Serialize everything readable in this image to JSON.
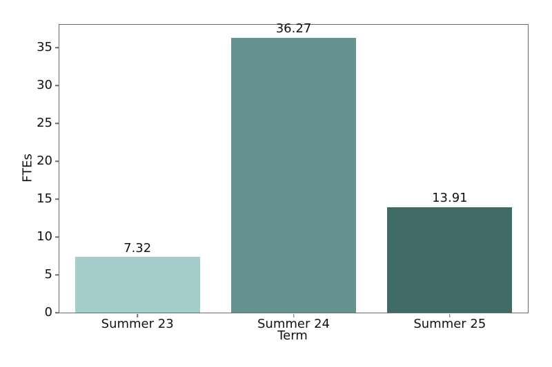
{
  "figure": {
    "background": "#ffffff"
  },
  "chart_data": {
    "type": "bar",
    "title": "",
    "xlabel": "Term",
    "ylabel": "FTEs",
    "categories": [
      "Summer 23",
      "Summer 24",
      "Summer 25"
    ],
    "values": [
      7.32,
      36.27,
      13.91
    ],
    "value_labels": [
      "7.32",
      "36.27",
      "13.91"
    ],
    "bar_colors": [
      "#a2cdc8",
      "#65918e",
      "#406a64"
    ],
    "ylim": [
      0,
      38
    ],
    "yticks": [
      0,
      5,
      10,
      15,
      20,
      25,
      30,
      35
    ],
    "bar_width_fraction": 0.8,
    "grid": false,
    "legend": null,
    "spine_color": "#6b6b6b",
    "text_color": "#111111"
  }
}
